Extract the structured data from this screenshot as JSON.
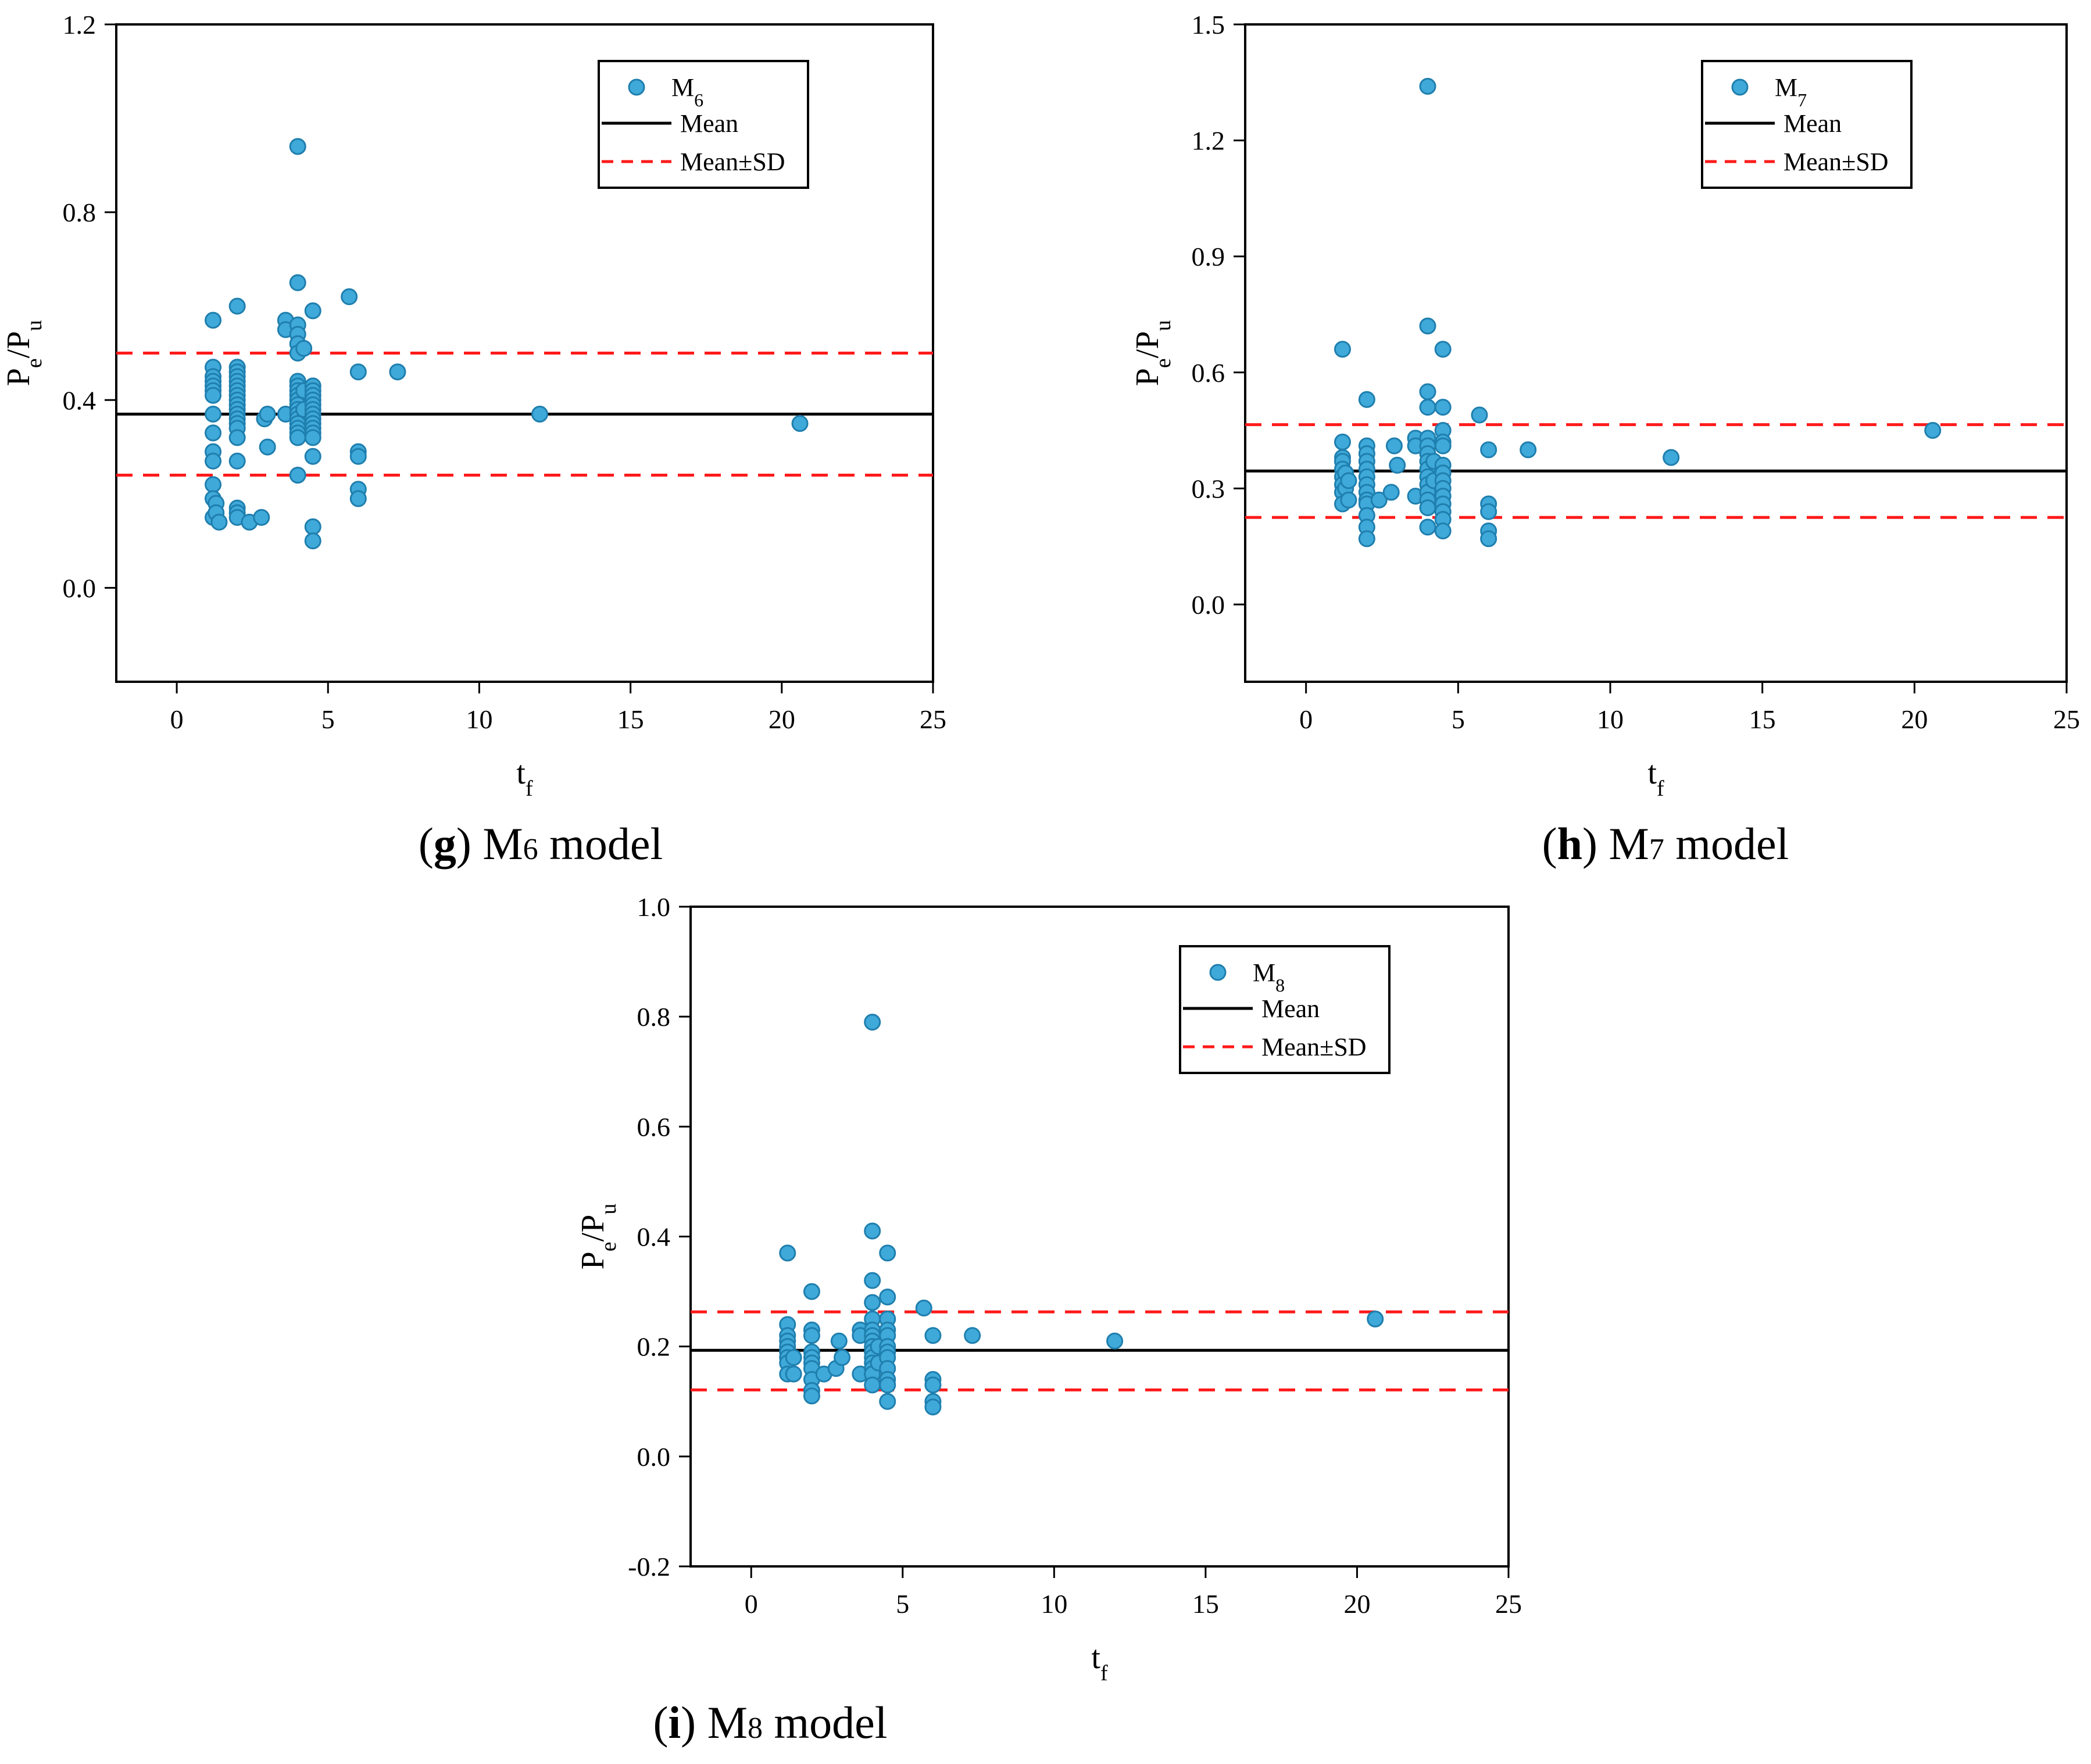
{
  "colors": {
    "marker_fill": "#3FA9D9",
    "marker_stroke": "#1F7FAE",
    "mean_line": "#000000",
    "sd_line": "#FF1A1A"
  },
  "chart_data": [
    {
      "type": "scatter",
      "panel_label": "g",
      "caption": {
        "model": "M",
        "sub": "6",
        "suffix": " model"
      },
      "xlabel": {
        "base": "t",
        "sub": "f"
      },
      "ylabel": {
        "base1": "P",
        "sub1": "e",
        "mid": "/P",
        "sub2": "u"
      },
      "xlim": [
        -2,
        25
      ],
      "ylim": [
        -0.2,
        1.2
      ],
      "xticks": [
        0,
        5,
        10,
        15,
        20,
        25
      ],
      "yticks": [
        0.0,
        0.4,
        0.8,
        1.2
      ],
      "ytick_labels": [
        "0.0",
        "0.4",
        "0.8",
        "1.2"
      ],
      "legend": {
        "series": {
          "base": "M",
          "sub": "6"
        },
        "mean": "Mean",
        "sd": "Mean±SD"
      },
      "mean": 0.37,
      "sd_upper": 0.5,
      "sd_lower": 0.24,
      "points": [
        [
          1.2,
          0.57
        ],
        [
          1.2,
          0.47
        ],
        [
          1.2,
          0.45
        ],
        [
          1.2,
          0.44
        ],
        [
          1.2,
          0.43
        ],
        [
          1.2,
          0.42
        ],
        [
          1.2,
          0.41
        ],
        [
          1.2,
          0.37
        ],
        [
          1.2,
          0.33
        ],
        [
          1.2,
          0.29
        ],
        [
          1.2,
          0.27
        ],
        [
          1.2,
          0.22
        ],
        [
          1.2,
          0.19
        ],
        [
          1.2,
          0.15
        ],
        [
          1.3,
          0.18
        ],
        [
          1.3,
          0.16
        ],
        [
          1.4,
          0.14
        ],
        [
          2.0,
          0.6
        ],
        [
          2.0,
          0.47
        ],
        [
          2.0,
          0.46
        ],
        [
          2.0,
          0.45
        ],
        [
          2.0,
          0.44
        ],
        [
          2.0,
          0.43
        ],
        [
          2.0,
          0.42
        ],
        [
          2.0,
          0.41
        ],
        [
          2.0,
          0.4
        ],
        [
          2.0,
          0.39
        ],
        [
          2.0,
          0.38
        ],
        [
          2.0,
          0.37
        ],
        [
          2.0,
          0.36
        ],
        [
          2.0,
          0.35
        ],
        [
          2.0,
          0.34
        ],
        [
          2.0,
          0.32
        ],
        [
          2.0,
          0.27
        ],
        [
          2.0,
          0.17
        ],
        [
          2.0,
          0.16
        ],
        [
          2.0,
          0.15
        ],
        [
          2.4,
          0.14
        ],
        [
          2.8,
          0.15
        ],
        [
          2.9,
          0.36
        ],
        [
          3.0,
          0.37
        ],
        [
          3.0,
          0.3
        ],
        [
          3.6,
          0.57
        ],
        [
          3.6,
          0.55
        ],
        [
          3.6,
          0.37
        ],
        [
          4.0,
          0.94
        ],
        [
          4.0,
          0.65
        ],
        [
          4.0,
          0.56
        ],
        [
          4.0,
          0.54
        ],
        [
          4.0,
          0.52
        ],
        [
          4.0,
          0.5
        ],
        [
          4.0,
          0.44
        ],
        [
          4.0,
          0.43
        ],
        [
          4.0,
          0.42
        ],
        [
          4.0,
          0.41
        ],
        [
          4.0,
          0.4
        ],
        [
          4.0,
          0.39
        ],
        [
          4.0,
          0.38
        ],
        [
          4.0,
          0.37
        ],
        [
          4.0,
          0.36
        ],
        [
          4.0,
          0.35
        ],
        [
          4.0,
          0.34
        ],
        [
          4.0,
          0.33
        ],
        [
          4.0,
          0.32
        ],
        [
          4.0,
          0.24
        ],
        [
          4.2,
          0.51
        ],
        [
          4.2,
          0.42
        ],
        [
          4.2,
          0.38
        ],
        [
          4.5,
          0.59
        ],
        [
          4.5,
          0.43
        ],
        [
          4.5,
          0.42
        ],
        [
          4.5,
          0.41
        ],
        [
          4.5,
          0.4
        ],
        [
          4.5,
          0.39
        ],
        [
          4.5,
          0.38
        ],
        [
          4.5,
          0.37
        ],
        [
          4.5,
          0.36
        ],
        [
          4.5,
          0.35
        ],
        [
          4.5,
          0.34
        ],
        [
          4.5,
          0.33
        ],
        [
          4.5,
          0.32
        ],
        [
          4.5,
          0.28
        ],
        [
          4.5,
          0.13
        ],
        [
          4.5,
          0.1
        ],
        [
          5.7,
          0.62
        ],
        [
          6.0,
          0.46
        ],
        [
          6.0,
          0.29
        ],
        [
          6.0,
          0.28
        ],
        [
          6.0,
          0.21
        ],
        [
          6.0,
          0.19
        ],
        [
          7.3,
          0.46
        ],
        [
          12.0,
          0.37
        ],
        [
          20.6,
          0.35
        ]
      ]
    },
    {
      "type": "scatter",
      "panel_label": "h",
      "caption": {
        "model": "M",
        "sub": "7",
        "suffix": " model"
      },
      "xlabel": {
        "base": "t",
        "sub": "f"
      },
      "ylabel": {
        "base1": "P",
        "sub1": "e",
        "mid": "/P",
        "sub2": "u"
      },
      "xlim": [
        -2,
        25
      ],
      "ylim": [
        -0.2,
        1.5
      ],
      "xticks": [
        0,
        5,
        10,
        15,
        20,
        25
      ],
      "yticks": [
        0.0,
        0.3,
        0.6,
        0.9,
        1.2,
        1.5
      ],
      "ytick_labels": [
        "0.0",
        "0.3",
        "0.6",
        "0.9",
        "1.2",
        "1.5"
      ],
      "legend": {
        "series": {
          "base": "M",
          "sub": "7"
        },
        "mean": "Mean",
        "sd": "Mean±SD"
      },
      "mean": 0.345,
      "sd_upper": 0.465,
      "sd_lower": 0.225,
      "points": [
        [
          1.2,
          0.66
        ],
        [
          1.2,
          0.42
        ],
        [
          1.2,
          0.38
        ],
        [
          1.2,
          0.37
        ],
        [
          1.2,
          0.35
        ],
        [
          1.2,
          0.33
        ],
        [
          1.2,
          0.31
        ],
        [
          1.2,
          0.29
        ],
        [
          1.2,
          0.26
        ],
        [
          1.3,
          0.34
        ],
        [
          1.3,
          0.3
        ],
        [
          1.4,
          0.32
        ],
        [
          1.4,
          0.27
        ],
        [
          2.0,
          0.53
        ],
        [
          2.0,
          0.41
        ],
        [
          2.0,
          0.39
        ],
        [
          2.0,
          0.37
        ],
        [
          2.0,
          0.35
        ],
        [
          2.0,
          0.33
        ],
        [
          2.0,
          0.31
        ],
        [
          2.0,
          0.29
        ],
        [
          2.0,
          0.27
        ],
        [
          2.0,
          0.26
        ],
        [
          2.0,
          0.23
        ],
        [
          2.0,
          0.2
        ],
        [
          2.0,
          0.17
        ],
        [
          2.4,
          0.27
        ],
        [
          2.8,
          0.29
        ],
        [
          2.9,
          0.41
        ],
        [
          3.0,
          0.36
        ],
        [
          3.6,
          0.43
        ],
        [
          3.6,
          0.41
        ],
        [
          3.6,
          0.28
        ],
        [
          4.0,
          1.34
        ],
        [
          4.0,
          0.72
        ],
        [
          4.0,
          0.55
        ],
        [
          4.0,
          0.51
        ],
        [
          4.0,
          0.43
        ],
        [
          4.0,
          0.41
        ],
        [
          4.0,
          0.39
        ],
        [
          4.0,
          0.37
        ],
        [
          4.0,
          0.35
        ],
        [
          4.0,
          0.33
        ],
        [
          4.0,
          0.31
        ],
        [
          4.0,
          0.29
        ],
        [
          4.0,
          0.27
        ],
        [
          4.0,
          0.25
        ],
        [
          4.0,
          0.2
        ],
        [
          4.2,
          0.37
        ],
        [
          4.2,
          0.32
        ],
        [
          4.5,
          0.66
        ],
        [
          4.5,
          0.51
        ],
        [
          4.5,
          0.45
        ],
        [
          4.5,
          0.42
        ],
        [
          4.5,
          0.41
        ],
        [
          4.5,
          0.36
        ],
        [
          4.5,
          0.34
        ],
        [
          4.5,
          0.32
        ],
        [
          4.5,
          0.3
        ],
        [
          4.5,
          0.28
        ],
        [
          4.5,
          0.26
        ],
        [
          4.5,
          0.24
        ],
        [
          4.5,
          0.22
        ],
        [
          4.5,
          0.19
        ],
        [
          5.7,
          0.49
        ],
        [
          6.0,
          0.4
        ],
        [
          6.0,
          0.26
        ],
        [
          6.0,
          0.24
        ],
        [
          6.0,
          0.19
        ],
        [
          6.0,
          0.17
        ],
        [
          7.3,
          0.4
        ],
        [
          12.0,
          0.38
        ],
        [
          20.6,
          0.45
        ]
      ]
    },
    {
      "type": "scatter",
      "panel_label": "i",
      "caption": {
        "model": "M",
        "sub": "8",
        "suffix": " model"
      },
      "xlabel": {
        "base": "t",
        "sub": "f"
      },
      "ylabel": {
        "base1": "P",
        "sub1": "e",
        "mid": "/P",
        "sub2": "u"
      },
      "xlim": [
        -2,
        25
      ],
      "ylim": [
        -0.2,
        1.0
      ],
      "xticks": [
        0,
        5,
        10,
        15,
        20,
        25
      ],
      "yticks": [
        -0.2,
        0.0,
        0.2,
        0.4,
        0.6,
        0.8,
        1.0
      ],
      "ytick_labels": [
        "-0.2",
        "0.0",
        "0.2",
        "0.4",
        "0.6",
        "0.8",
        "1.0"
      ],
      "legend": {
        "series": {
          "base": "M",
          "sub": "8"
        },
        "mean": "Mean",
        "sd": "Mean±SD"
      },
      "mean": 0.193,
      "sd_upper": 0.263,
      "sd_lower": 0.121,
      "points": [
        [
          1.2,
          0.37
        ],
        [
          1.2,
          0.24
        ],
        [
          1.2,
          0.22
        ],
        [
          1.2,
          0.21
        ],
        [
          1.2,
          0.2
        ],
        [
          1.2,
          0.19
        ],
        [
          1.2,
          0.18
        ],
        [
          1.2,
          0.17
        ],
        [
          1.2,
          0.15
        ],
        [
          1.4,
          0.18
        ],
        [
          1.4,
          0.15
        ],
        [
          2.0,
          0.3
        ],
        [
          2.0,
          0.23
        ],
        [
          2.0,
          0.22
        ],
        [
          2.0,
          0.19
        ],
        [
          2.0,
          0.18
        ],
        [
          2.0,
          0.17
        ],
        [
          2.0,
          0.16
        ],
        [
          2.0,
          0.14
        ],
        [
          2.0,
          0.12
        ],
        [
          2.0,
          0.11
        ],
        [
          2.4,
          0.15
        ],
        [
          2.8,
          0.16
        ],
        [
          2.9,
          0.21
        ],
        [
          3.0,
          0.18
        ],
        [
          3.6,
          0.23
        ],
        [
          3.6,
          0.22
        ],
        [
          3.6,
          0.15
        ],
        [
          4.0,
          0.79
        ],
        [
          4.0,
          0.41
        ],
        [
          4.0,
          0.32
        ],
        [
          4.0,
          0.28
        ],
        [
          4.0,
          0.25
        ],
        [
          4.0,
          0.23
        ],
        [
          4.0,
          0.22
        ],
        [
          4.0,
          0.21
        ],
        [
          4.0,
          0.2
        ],
        [
          4.0,
          0.19
        ],
        [
          4.0,
          0.18
        ],
        [
          4.0,
          0.17
        ],
        [
          4.0,
          0.16
        ],
        [
          4.0,
          0.15
        ],
        [
          4.0,
          0.13
        ],
        [
          4.2,
          0.2
        ],
        [
          4.2,
          0.17
        ],
        [
          4.5,
          0.37
        ],
        [
          4.5,
          0.29
        ],
        [
          4.5,
          0.25
        ],
        [
          4.5,
          0.23
        ],
        [
          4.5,
          0.22
        ],
        [
          4.5,
          0.2
        ],
        [
          4.5,
          0.19
        ],
        [
          4.5,
          0.18
        ],
        [
          4.5,
          0.16
        ],
        [
          4.5,
          0.14
        ],
        [
          4.5,
          0.13
        ],
        [
          4.5,
          0.1
        ],
        [
          5.7,
          0.27
        ],
        [
          6.0,
          0.22
        ],
        [
          6.0,
          0.14
        ],
        [
          6.0,
          0.13
        ],
        [
          6.0,
          0.1
        ],
        [
          6.0,
          0.09
        ],
        [
          7.3,
          0.22
        ],
        [
          12.0,
          0.21
        ],
        [
          20.6,
          0.25
        ]
      ]
    }
  ]
}
